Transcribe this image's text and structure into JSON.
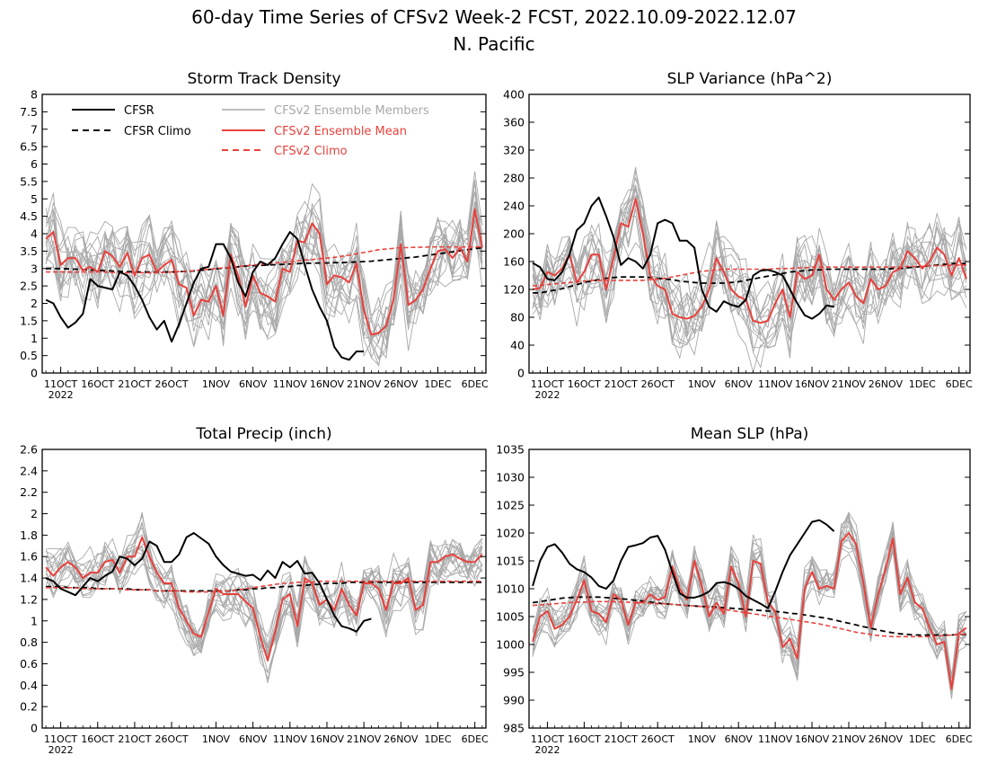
{
  "title_line1": "60-day Time Series of CFSv2 Week-2 FCST, 2022.10.09-2022.12.07",
  "title_line2": "N. Pacific",
  "colors": {
    "cfsr": "#000000",
    "climo": "#000000",
    "members": "#a8a8a8",
    "ensemble_mean": "#e8413c",
    "cfsv2_climo": "#e8413c"
  },
  "legend": {
    "cfsr": "CFSR",
    "cfsr_climo": "CFSR Climo",
    "members": "CFSv2 Ensemble Members",
    "ensemble_mean": "CFSv2 Ensemble Mean",
    "cfsv2_climo": "CFSv2 Climo"
  },
  "x_ticks": [
    "11OCT",
    "16OCT",
    "21OCT",
    "26OCT",
    "1NOV",
    "6NOV",
    "11NOV",
    "16NOV",
    "21NOV",
    "26NOV",
    "1DEC",
    "6DEC"
  ],
  "x_tick_days": [
    2,
    7,
    12,
    17,
    23,
    28,
    33,
    38,
    43,
    48,
    53,
    58
  ],
  "x_year": "2022",
  "chart_data": [
    {
      "type": "line",
      "title": "Storm Track Density",
      "ylim": [
        0,
        8
      ],
      "yticks": [
        0,
        0.5,
        1,
        1.5,
        2,
        2.5,
        3,
        3.5,
        4,
        4.5,
        5,
        5.5,
        6,
        6.5,
        7,
        7.5,
        8
      ],
      "series": [
        {
          "name": "CFSR",
          "values": [
            2.1,
            2.0,
            1.6,
            1.3,
            1.45,
            1.7,
            2.7,
            2.5,
            2.45,
            2.4,
            2.9,
            2.8,
            2.5,
            2.1,
            1.6,
            1.25,
            1.5,
            0.9,
            1.4,
            2.0,
            2.6,
            3.0,
            3.05,
            3.7,
            3.7,
            3.3,
            2.6,
            2.2,
            2.9,
            3.2,
            3.1,
            3.3,
            3.7,
            4.05,
            3.85,
            3.1,
            2.4,
            1.9,
            1.5,
            0.75,
            0.45,
            0.38,
            0.62,
            0.62
          ]
        },
        {
          "name": "CFSR Climo",
          "values": [
            3.0,
            3.0,
            3.0,
            2.99,
            2.98,
            2.97,
            2.96,
            2.95,
            2.94,
            2.93,
            2.92,
            2.91,
            2.9,
            2.9,
            2.9,
            2.9,
            2.9,
            2.9,
            2.91,
            2.92,
            2.93,
            2.95,
            2.97,
            2.99,
            3.01,
            3.03,
            3.05,
            3.07,
            3.08,
            3.09,
            3.1,
            3.11,
            3.12,
            3.13,
            3.14,
            3.15,
            3.15,
            3.16,
            3.16,
            3.17,
            3.17,
            3.18,
            3.19,
            3.2,
            3.21,
            3.23,
            3.25,
            3.27,
            3.29,
            3.31,
            3.33,
            3.36,
            3.39,
            3.42,
            3.45,
            3.48,
            3.51,
            3.54,
            3.57,
            3.6
          ]
        },
        {
          "name": "CFSv2 Ensemble Mean",
          "values": [
            3.85,
            4.05,
            3.1,
            3.3,
            3.3,
            2.95,
            3.05,
            2.9,
            3.5,
            3.35,
            3.05,
            3.45,
            2.8,
            3.3,
            3.4,
            2.9,
            3.1,
            3.25,
            2.55,
            2.45,
            1.65,
            2.1,
            2.05,
            2.5,
            1.65,
            3.4,
            2.8,
            1.9,
            2.8,
            2.3,
            2.2,
            2.05,
            3.0,
            2.9,
            3.8,
            3.75,
            4.3,
            4.0,
            2.55,
            2.8,
            2.75,
            2.6,
            3.15,
            1.8,
            1.1,
            1.15,
            1.35,
            2.1,
            3.7,
            1.95,
            2.1,
            2.4,
            3.0,
            3.5,
            3.55,
            3.3,
            3.6,
            3.2,
            4.7,
            3.6
          ]
        },
        {
          "name": "CFSv2 Climo",
          "values": [
            2.9,
            2.9,
            2.9,
            2.9,
            2.9,
            2.9,
            2.9,
            2.9,
            2.9,
            2.89,
            2.88,
            2.88,
            2.88,
            2.88,
            2.88,
            2.88,
            2.89,
            2.9,
            2.91,
            2.92,
            2.94,
            2.96,
            2.98,
            3.0,
            3.02,
            3.04,
            3.06,
            3.08,
            3.1,
            3.12,
            3.14,
            3.16,
            3.18,
            3.2,
            3.22,
            3.24,
            3.26,
            3.28,
            3.3,
            3.32,
            3.35,
            3.38,
            3.42,
            3.46,
            3.5,
            3.54,
            3.56,
            3.58,
            3.6,
            3.6,
            3.61,
            3.61,
            3.62,
            3.62,
            3.62,
            3.62,
            3.62,
            3.62,
            3.62,
            3.62
          ]
        }
      ],
      "members": {
        "count": 16,
        "spread": 0.9
      }
    },
    {
      "type": "line",
      "title": "SLP Variance (hPa^2)",
      "ylim": [
        0,
        400
      ],
      "yticks": [
        0,
        40,
        80,
        120,
        160,
        200,
        240,
        280,
        320,
        360,
        400
      ],
      "series": [
        {
          "name": "CFSR",
          "values": [
            158,
            152,
            135,
            133,
            145,
            170,
            205,
            215,
            240,
            252,
            225,
            195,
            155,
            165,
            160,
            150,
            170,
            215,
            220,
            215,
            190,
            190,
            180,
            120,
            95,
            88,
            103,
            98,
            95,
            105,
            140,
            147,
            148,
            145,
            140,
            120,
            100,
            83,
            78,
            85,
            97,
            95
          ]
        },
        {
          "name": "CFSR Climo",
          "values": [
            115,
            115,
            117,
            119,
            121,
            124,
            127,
            130,
            132,
            134,
            136,
            137,
            138,
            138,
            138,
            138,
            137,
            136,
            135,
            134,
            132,
            131,
            130,
            129,
            129,
            129,
            129,
            130,
            131,
            133,
            135,
            137,
            139,
            141,
            143,
            145,
            146,
            147,
            148,
            148,
            149,
            149,
            149,
            149,
            149,
            149,
            149,
            149,
            149,
            150,
            150,
            151,
            152,
            153,
            154,
            155,
            156,
            157,
            157,
            157
          ]
        },
        {
          "name": "CFSv2 Ensemble Mean",
          "values": [
            120,
            122,
            145,
            140,
            150,
            170,
            130,
            145,
            170,
            170,
            120,
            165,
            215,
            210,
            250,
            200,
            140,
            125,
            120,
            85,
            80,
            78,
            82,
            95,
            120,
            165,
            145,
            120,
            110,
            105,
            75,
            72,
            75,
            100,
            120,
            80,
            145,
            135,
            140,
            170,
            120,
            105,
            120,
            130,
            110,
            100,
            135,
            120,
            125,
            145,
            150,
            175,
            165,
            150,
            160,
            180,
            170,
            140,
            165,
            135
          ]
        },
        {
          "name": "CFSv2 Climo",
          "values": [
            125,
            126,
            127,
            128,
            129,
            130,
            131,
            132,
            133,
            133,
            133,
            133,
            133,
            133,
            133,
            133,
            134,
            135,
            136,
            138,
            140,
            142,
            144,
            146,
            147,
            148,
            149,
            149,
            149,
            149,
            149,
            149,
            149,
            150,
            150,
            150,
            151,
            151,
            152,
            152,
            152,
            152,
            152,
            152,
            152,
            152,
            152,
            152,
            152,
            152,
            152,
            153,
            153,
            153,
            154,
            154,
            154,
            155,
            155,
            155
          ]
        }
      ],
      "members": {
        "count": 16,
        "spread": 45
      }
    },
    {
      "type": "line",
      "title": "Total Precip (inch)",
      "ylim": [
        0,
        2.6
      ],
      "yticks": [
        0,
        0.2,
        0.4,
        0.6,
        0.8,
        1,
        1.2,
        1.4,
        1.6,
        1.8,
        2,
        2.2,
        2.4,
        2.6
      ],
      "series": [
        {
          "name": "CFSR",
          "values": [
            1.4,
            1.37,
            1.3,
            1.27,
            1.24,
            1.32,
            1.4,
            1.37,
            1.42,
            1.46,
            1.6,
            1.58,
            1.52,
            1.58,
            1.74,
            1.7,
            1.55,
            1.55,
            1.62,
            1.78,
            1.82,
            1.77,
            1.72,
            1.6,
            1.52,
            1.46,
            1.44,
            1.42,
            1.43,
            1.38,
            1.47,
            1.4,
            1.55,
            1.5,
            1.56,
            1.44,
            1.45,
            1.35,
            1.2,
            1.05,
            0.95,
            0.93,
            0.9,
            1.0,
            1.02
          ]
        },
        {
          "name": "CFSR Climo",
          "values": [
            1.32,
            1.32,
            1.32,
            1.31,
            1.31,
            1.31,
            1.31,
            1.3,
            1.3,
            1.3,
            1.3,
            1.3,
            1.29,
            1.29,
            1.29,
            1.28,
            1.28,
            1.28,
            1.28,
            1.28,
            1.28,
            1.28,
            1.28,
            1.28,
            1.28,
            1.28,
            1.29,
            1.29,
            1.3,
            1.3,
            1.31,
            1.31,
            1.32,
            1.32,
            1.33,
            1.33,
            1.34,
            1.34,
            1.35,
            1.35,
            1.35,
            1.36,
            1.36,
            1.36,
            1.36,
            1.36,
            1.36,
            1.36,
            1.36,
            1.36,
            1.36,
            1.36,
            1.36,
            1.36,
            1.36,
            1.36,
            1.36,
            1.36,
            1.36,
            1.36
          ]
        },
        {
          "name": "CFSv2 Ensemble Mean",
          "values": [
            1.5,
            1.42,
            1.5,
            1.55,
            1.5,
            1.4,
            1.45,
            1.45,
            1.55,
            1.57,
            1.45,
            1.6,
            1.6,
            1.78,
            1.6,
            1.45,
            1.35,
            1.35,
            1.12,
            1.0,
            0.88,
            0.85,
            1.08,
            1.3,
            1.25,
            1.25,
            1.25,
            1.18,
            1.12,
            0.85,
            0.63,
            0.9,
            1.2,
            1.25,
            0.95,
            1.4,
            1.35,
            1.15,
            1.2,
            1.1,
            1.3,
            1.15,
            1.05,
            1.35,
            1.35,
            1.3,
            1.1,
            1.35,
            1.35,
            1.4,
            1.1,
            1.15,
            1.55,
            1.55,
            1.6,
            1.62,
            1.58,
            1.55,
            1.55,
            1.62
          ]
        },
        {
          "name": "CFSv2 Climo",
          "values": [
            1.31,
            1.31,
            1.31,
            1.31,
            1.31,
            1.3,
            1.3,
            1.3,
            1.3,
            1.3,
            1.3,
            1.29,
            1.29,
            1.29,
            1.29,
            1.28,
            1.28,
            1.28,
            1.28,
            1.27,
            1.27,
            1.27,
            1.27,
            1.27,
            1.28,
            1.28,
            1.29,
            1.3,
            1.31,
            1.32,
            1.33,
            1.34,
            1.35,
            1.35,
            1.36,
            1.36,
            1.36,
            1.37,
            1.37,
            1.37,
            1.37,
            1.37,
            1.37,
            1.37,
            1.37,
            1.37,
            1.37,
            1.37,
            1.37,
            1.37,
            1.37,
            1.37,
            1.37,
            1.37,
            1.37,
            1.37,
            1.37,
            1.37,
            1.37,
            1.37
          ]
        }
      ],
      "members": {
        "count": 16,
        "spread": 0.18
      }
    },
    {
      "type": "line",
      "title": "Mean SLP (hPa)",
      "ylim": [
        985,
        1035
      ],
      "yticks": [
        985,
        990,
        995,
        1000,
        1005,
        1010,
        1015,
        1020,
        1025,
        1030,
        1035
      ],
      "series": [
        {
          "name": "CFSR",
          "values": [
            1010.5,
            1015,
            1017.5,
            1018,
            1016.5,
            1014.5,
            1013.5,
            1013,
            1012,
            1010.5,
            1010,
            1011.5,
            1015,
            1017.5,
            1017.8,
            1018.2,
            1019.2,
            1019.5,
            1017,
            1013,
            1009.2,
            1008.4,
            1008.4,
            1008.8,
            1009.5,
            1011,
            1011.2,
            1010.8,
            1010,
            1008.7,
            1008,
            1007.3,
            1006.5,
            1009.5,
            1013,
            1016,
            1018,
            1020,
            1022,
            1022.3,
            1021.5,
            1020.3
          ]
        },
        {
          "name": "CFSR Climo",
          "values": [
            1007.5,
            1007.7,
            1007.9,
            1008.1,
            1008.3,
            1008.4,
            1008.5,
            1008.5,
            1008.5,
            1008.5,
            1008.4,
            1008.3,
            1008.2,
            1008.1,
            1007.9,
            1007.8,
            1007.6,
            1007.4,
            1007.3,
            1007.2,
            1007.1,
            1007.0,
            1006.9,
            1006.8,
            1006.8,
            1006.7,
            1006.6,
            1006.5,
            1006.4,
            1006.3,
            1006.2,
            1006.1,
            1006.0,
            1005.9,
            1005.8,
            1005.6,
            1005.5,
            1005.3,
            1005.1,
            1004.9,
            1004.7,
            1004.4,
            1004.1,
            1003.8,
            1003.5,
            1003.2,
            1002.9,
            1002.6,
            1002.3,
            1002.1,
            1001.9,
            1001.8,
            1001.7,
            1001.7,
            1001.7,
            1001.7,
            1001.7,
            1001.7,
            1001.8,
            1001.8
          ]
        },
        {
          "name": "CFSv2 Ensemble Mean",
          "values": [
            1000.5,
            1005,
            1006,
            1002.8,
            1003.5,
            1005,
            1008,
            1011.5,
            1006,
            1005.5,
            1004,
            1009,
            1008,
            1003.5,
            1007.5,
            1007.5,
            1009,
            1008,
            1008.5,
            1014,
            1010,
            1008,
            1015,
            1010.5,
            1005,
            1007.5,
            1005.5,
            1014,
            1011,
            1005,
            1015,
            1014.5,
            1007.5,
            1006,
            999.5,
            1001,
            997.5,
            1010,
            1013,
            1010,
            1010.5,
            1010,
            1018.5,
            1020,
            1018,
            1011,
            1003,
            1009,
            1013.5,
            1019,
            1009,
            1012,
            1007.5,
            1006.5,
            1003,
            1000,
            1000.5,
            992,
            1002,
            1003
          ]
        },
        {
          "name": "CFSv2 Climo",
          "values": [
            1007,
            1007.1,
            1007.2,
            1007.3,
            1007.4,
            1007.5,
            1007.6,
            1007.6,
            1007.7,
            1007.7,
            1007.7,
            1007.7,
            1007.6,
            1007.6,
            1007.5,
            1007.5,
            1007.4,
            1007.3,
            1007.3,
            1007.2,
            1007.1,
            1007.0,
            1006.9,
            1006.8,
            1006.7,
            1006.5,
            1006.3,
            1006.1,
            1005.9,
            1005.7,
            1005.5,
            1005.3,
            1005.1,
            1004.9,
            1004.7,
            1004.5,
            1004.3,
            1004.1,
            1003.9,
            1003.7,
            1003.4,
            1003.1,
            1002.8,
            1002.5,
            1002.2,
            1002.0,
            1001.8,
            1001.6,
            1001.5,
            1001.4,
            1001.4,
            1001.4,
            1001.4,
            1001.4,
            1001.4,
            1001.5,
            1001.6,
            1001.7,
            1001.8,
            1001.9
          ]
        }
      ],
      "members": {
        "count": 16,
        "spread": 3.0
      }
    }
  ]
}
